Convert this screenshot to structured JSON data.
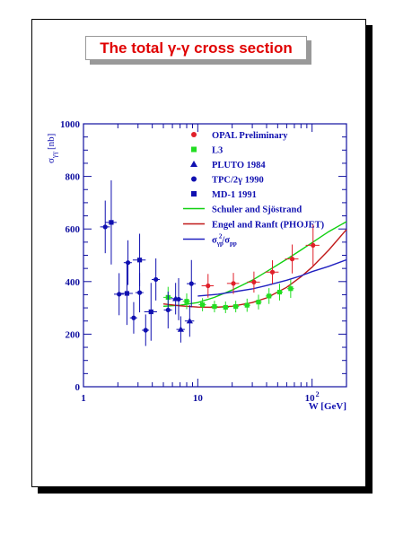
{
  "chart_data": {
    "type": "scatter",
    "title": "The total γ-γ cross section",
    "xlabel": "W [GeV]",
    "ylabel": "σγγ [nb]",
    "ylabel_main": "σ",
    "ylabel_sub": "γγ",
    "ylabel_unit": "[nb]",
    "xscale": "log",
    "xlim": [
      1,
      200
    ],
    "ylim": [
      0,
      1000
    ],
    "x_ticks": [
      {
        "v": 1,
        "label": "1"
      },
      {
        "v": 10,
        "label": "10"
      },
      {
        "v": 100,
        "label": "10",
        "sup": "2"
      }
    ],
    "y_ticks": [
      0,
      200,
      400,
      600,
      800,
      1000
    ],
    "legend_position": "top-right",
    "series": [
      {
        "name": "OPAL Preliminary",
        "marker": "circle",
        "color": "#e0202a",
        "points": [
          {
            "x": 12.3,
            "y": 384,
            "yerr": 45,
            "xerr": 1.5
          },
          {
            "x": 20.5,
            "y": 393,
            "yerr": 40,
            "xerr": 2.5
          },
          {
            "x": 31,
            "y": 398,
            "yerr": 40,
            "xerr": 4
          },
          {
            "x": 45,
            "y": 436,
            "yerr": 45,
            "xerr": 6
          },
          {
            "x": 67,
            "y": 486,
            "yerr": 55,
            "xerr": 9
          },
          {
            "x": 102,
            "y": 538,
            "yerr": 80,
            "xerr": 14
          }
        ]
      },
      {
        "name": "L3",
        "marker": "square",
        "color": "#22dd22",
        "points": [
          {
            "x": 5.5,
            "y": 340,
            "yerr": 40,
            "xerr": 0.5
          },
          {
            "x": 8,
            "y": 325,
            "yerr": 30,
            "xerr": 0.6
          },
          {
            "x": 11,
            "y": 312,
            "yerr": 25,
            "xerr": 0.8
          },
          {
            "x": 14,
            "y": 305,
            "yerr": 22,
            "xerr": 1
          },
          {
            "x": 17.5,
            "y": 302,
            "yerr": 22,
            "xerr": 1.2
          },
          {
            "x": 21.5,
            "y": 305,
            "yerr": 22,
            "xerr": 1.5
          },
          {
            "x": 27,
            "y": 310,
            "yerr": 25,
            "xerr": 1.8
          },
          {
            "x": 34,
            "y": 322,
            "yerr": 28,
            "xerr": 2.2
          },
          {
            "x": 42,
            "y": 345,
            "yerr": 30,
            "xerr": 2.8
          },
          {
            "x": 52,
            "y": 360,
            "yerr": 32,
            "xerr": 3.4
          },
          {
            "x": 65,
            "y": 373,
            "yerr": 35,
            "xerr": 4.5
          }
        ]
      },
      {
        "name": "PLUTO 1984",
        "marker": "triangle",
        "color": "#1010b0",
        "points": [
          {
            "x": 6.4,
            "y": 335,
            "yerr": 60,
            "xerr": 0.6
          },
          {
            "x": 7.1,
            "y": 218,
            "yerr": 50,
            "xerr": 0.6
          },
          {
            "x": 8.5,
            "y": 250,
            "yerr": 60,
            "xerr": 0.8
          }
        ]
      },
      {
        "name": "TPC/2γ 1990",
        "marker": "circle",
        "color": "#1010b0",
        "points": [
          {
            "x": 1.55,
            "y": 608,
            "yerr": 100,
            "xerr": 0.15
          },
          {
            "x": 2.05,
            "y": 352,
            "yerr": 80,
            "xerr": 0.2
          },
          {
            "x": 2.45,
            "y": 472,
            "yerr": 85,
            "xerr": 0.2
          },
          {
            "x": 2.75,
            "y": 262,
            "yerr": 60,
            "xerr": 0.2
          },
          {
            "x": 3.1,
            "y": 358,
            "yerr": 75,
            "xerr": 0.25
          },
          {
            "x": 3.5,
            "y": 215,
            "yerr": 60,
            "xerr": 0.25
          },
          {
            "x": 4.3,
            "y": 408,
            "yerr": 80,
            "xerr": 0.35
          },
          {
            "x": 5.5,
            "y": 292,
            "yerr": 70,
            "xerr": 0.45
          },
          {
            "x": 6.8,
            "y": 333,
            "yerr": 80,
            "xerr": 0.6
          },
          {
            "x": 8.8,
            "y": 392,
            "yerr": 90,
            "xerr": 0.8
          }
        ]
      },
      {
        "name": "MD-1 1991",
        "marker": "square",
        "color": "#1010b0",
        "points": [
          {
            "x": 1.75,
            "y": 625,
            "yerr": 160,
            "xerr": 0.2
          },
          {
            "x": 2.4,
            "y": 355,
            "yerr": 120,
            "xerr": 0.3
          },
          {
            "x": 3.1,
            "y": 482,
            "yerr": 100,
            "xerr": 0.4
          },
          {
            "x": 3.9,
            "y": 285,
            "yerr": 110,
            "xerr": 0.5
          }
        ]
      },
      {
        "name": "Schuler and Sjöstrand",
        "type": "line",
        "color": "#10d010",
        "points": [
          {
            "x": 5,
            "y": 306
          },
          {
            "x": 7,
            "y": 310
          },
          {
            "x": 10,
            "y": 320
          },
          {
            "x": 14,
            "y": 340
          },
          {
            "x": 20,
            "y": 368
          },
          {
            "x": 30,
            "y": 405
          },
          {
            "x": 40,
            "y": 438
          },
          {
            "x": 60,
            "y": 485
          },
          {
            "x": 80,
            "y": 520
          },
          {
            "x": 100,
            "y": 548
          },
          {
            "x": 140,
            "y": 590
          },
          {
            "x": 200,
            "y": 628
          }
        ]
      },
      {
        "name": "Engel and Ranft (PHOJET)",
        "type": "line",
        "color": "#c01818",
        "points": [
          {
            "x": 5,
            "y": 315
          },
          {
            "x": 7,
            "y": 308
          },
          {
            "x": 10,
            "y": 303
          },
          {
            "x": 14,
            "y": 302
          },
          {
            "x": 20,
            "y": 306
          },
          {
            "x": 30,
            "y": 320
          },
          {
            "x": 40,
            "y": 338
          },
          {
            "x": 60,
            "y": 378
          },
          {
            "x": 80,
            "y": 418
          },
          {
            "x": 100,
            "y": 455
          },
          {
            "x": 140,
            "y": 520
          },
          {
            "x": 200,
            "y": 598
          }
        ]
      },
      {
        "name": "σγp²/σpp",
        "type": "line",
        "color": "#2020c0",
        "points": [
          {
            "x": 10,
            "y": 345
          },
          {
            "x": 15,
            "y": 352
          },
          {
            "x": 20,
            "y": 360
          },
          {
            "x": 30,
            "y": 372
          },
          {
            "x": 40,
            "y": 385
          },
          {
            "x": 60,
            "y": 405
          },
          {
            "x": 80,
            "y": 422
          },
          {
            "x": 100,
            "y": 438
          },
          {
            "x": 140,
            "y": 458
          },
          {
            "x": 200,
            "y": 483
          }
        ]
      }
    ]
  }
}
